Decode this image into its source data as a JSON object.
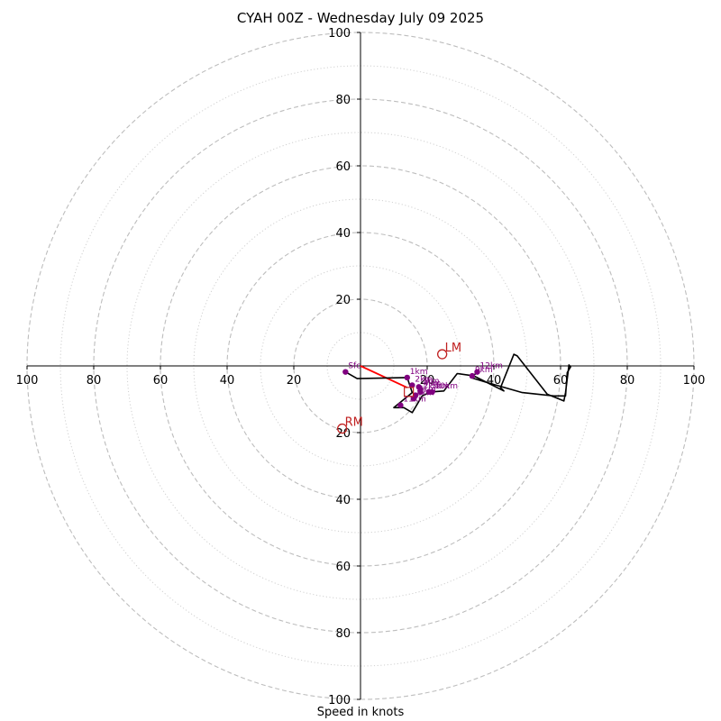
{
  "chart_data": {
    "type": "hodograph",
    "title": "CYAH 00Z - Wednesday July 09 2025",
    "xlabel": "Speed in knots",
    "max_speed": 100,
    "ring_major": [
      20,
      40,
      60,
      80,
      100
    ],
    "ring_minor": [
      10,
      30,
      50,
      70,
      90
    ],
    "x_tick_labels": [
      "100",
      "80",
      "60",
      "40",
      "20",
      "20",
      "40",
      "60",
      "80",
      "100"
    ],
    "x_tick_values": [
      -100,
      -80,
      -60,
      -40,
      -20,
      20,
      40,
      60,
      80,
      100
    ],
    "y_tick_labels": [
      "100",
      "80",
      "60",
      "40",
      "20",
      "20",
      "40",
      "60",
      "80",
      "100"
    ],
    "y_tick_values": [
      100,
      80,
      60,
      40,
      20,
      -20,
      -40,
      -60,
      -80,
      -100
    ],
    "grid": true,
    "colors": {
      "profile": "#000000",
      "levels": "#800080",
      "motion": "#c02020",
      "shear": "#ff0000",
      "grid": "#bdbdbd"
    },
    "wind_profile": [
      [
        -4.5,
        -1.8
      ],
      [
        -1.0,
        -3.8
      ],
      [
        14.0,
        -3.5
      ],
      [
        15.5,
        -8.0
      ],
      [
        10.0,
        -12.5
      ],
      [
        13.0,
        -12.5
      ],
      [
        15.5,
        -14.0
      ],
      [
        18.5,
        -9.0
      ],
      [
        21.0,
        -7.8
      ],
      [
        25.0,
        -7.5
      ],
      [
        29.0,
        -2.3
      ],
      [
        34.0,
        -3.0
      ],
      [
        43.0,
        -7.5
      ],
      [
        42.0,
        -6.5
      ],
      [
        46.0,
        3.5
      ],
      [
        47.0,
        3.0
      ],
      [
        56.0,
        -8.5
      ],
      [
        61.0,
        -10.5
      ],
      [
        61.5,
        -8.0
      ],
      [
        62.5,
        0.3
      ],
      [
        63.0,
        -0.3
      ],
      [
        62.0,
        -2.0
      ],
      [
        61.5,
        -9.0
      ],
      [
        58.0,
        -9.0
      ],
      [
        48.5,
        -8.0
      ],
      [
        38.0,
        -5.0
      ],
      [
        33.0,
        -3.5
      ],
      [
        35.0,
        -2.0
      ]
    ],
    "levels": [
      {
        "label": "Sfc",
        "u": -4.5,
        "v": -1.8
      },
      {
        "label": "1km",
        "u": 14.0,
        "v": -3.5
      },
      {
        "label": "2km",
        "u": 15.5,
        "v": -5.8
      },
      {
        "label": "3km",
        "u": 17.5,
        "v": -6.3
      },
      {
        "label": "4km",
        "u": 18.0,
        "v": -7.0
      },
      {
        "label": "5km",
        "u": 20.5,
        "v": -7.8
      },
      {
        "label": "6km",
        "u": 16.5,
        "v": -8.8
      },
      {
        "label": "7km",
        "u": 18.0,
        "v": -7.8
      },
      {
        "label": "8km",
        "u": 16.0,
        "v": -9.8
      },
      {
        "label": "9km",
        "u": 33.5,
        "v": -3.0
      },
      {
        "label": "10km",
        "u": 21.5,
        "v": -7.8
      },
      {
        "label": "11km",
        "u": 12.0,
        "v": -11.8
      },
      {
        "label": "12km",
        "u": 35.0,
        "v": -1.8
      }
    ],
    "storm_motion": [
      {
        "label": "LM",
        "u": 24.5,
        "v": 3.5
      },
      {
        "label": "RM",
        "u": -5.5,
        "v": -18.8
      }
    ],
    "mean_wind": {
      "label": "",
      "u": 14.5,
      "v": -7.8
    },
    "shear_vector": {
      "from": [
        0,
        0
      ],
      "to": [
        14.0,
        -6.5
      ]
    }
  }
}
